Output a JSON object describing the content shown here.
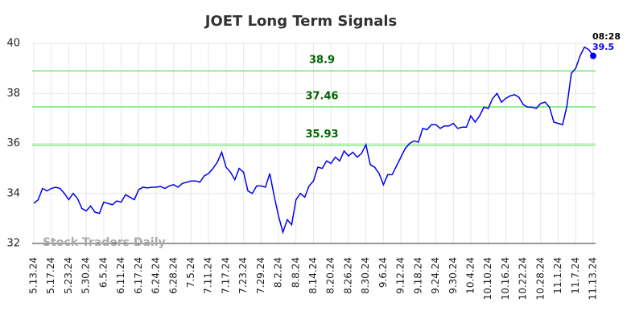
{
  "chart_data": {
    "type": "line",
    "title": "JOET Long Term Signals",
    "watermark": "Stock Traders Daily",
    "categories": [
      "5.13.24",
      null,
      null,
      null,
      "5.17.24",
      null,
      null,
      null,
      "5.23.24",
      null,
      null,
      null,
      "5.30.24",
      null,
      null,
      null,
      "6.5.24",
      null,
      null,
      null,
      "6.11.24",
      null,
      null,
      null,
      "6.17.24",
      null,
      null,
      null,
      "6.24.24",
      null,
      null,
      null,
      "6.28.24",
      null,
      null,
      null,
      "7.5.24",
      null,
      null,
      null,
      "7.11.24",
      null,
      null,
      null,
      "7.17.24",
      null,
      null,
      null,
      "7.23.24",
      null,
      null,
      null,
      "7.29.24",
      null,
      null,
      null,
      "8.2.24",
      null,
      null,
      null,
      "8.8.24",
      null,
      null,
      null,
      "8.14.24",
      null,
      null,
      null,
      "8.20.24",
      null,
      null,
      null,
      "8.26.24",
      null,
      null,
      null,
      "8.30.24",
      null,
      null,
      null,
      "9.6.24",
      null,
      null,
      null,
      "9.12.24",
      null,
      null,
      null,
      "9.18.24",
      null,
      null,
      null,
      "9.24.24",
      null,
      null,
      null,
      "9.30.24",
      null,
      null,
      null,
      "10.4.24",
      null,
      null,
      null,
      "10.10.24",
      null,
      null,
      null,
      "10.16.24",
      null,
      null,
      null,
      "10.22.24",
      null,
      null,
      null,
      "10.28.24",
      null,
      null,
      null,
      "11.1.24",
      null,
      null,
      null,
      "11.7.24",
      null,
      null,
      null,
      "11.13.24"
    ],
    "values": [
      33.6,
      33.75,
      34.2,
      34.1,
      34.2,
      34.25,
      34.2,
      34.0,
      33.75,
      34.0,
      33.8,
      33.4,
      33.3,
      33.5,
      33.25,
      33.2,
      33.65,
      33.6,
      33.55,
      33.7,
      33.65,
      33.95,
      33.85,
      33.75,
      34.15,
      34.25,
      34.22,
      34.25,
      34.25,
      34.28,
      34.2,
      34.3,
      34.35,
      34.25,
      34.4,
      34.45,
      34.5,
      34.5,
      34.45,
      34.7,
      34.8,
      35.0,
      35.25,
      35.65,
      35.05,
      34.85,
      34.55,
      35.0,
      34.85,
      34.1,
      34.0,
      34.3,
      34.3,
      34.25,
      34.8,
      33.9,
      33.1,
      32.45,
      32.95,
      32.75,
      33.75,
      34.0,
      33.85,
      34.3,
      34.5,
      35.05,
      35.0,
      35.3,
      35.2,
      35.45,
      35.3,
      35.7,
      35.5,
      35.65,
      35.45,
      35.6,
      35.95,
      35.15,
      35.05,
      34.8,
      34.35,
      34.75,
      34.75,
      35.1,
      35.45,
      35.8,
      36.0,
      36.1,
      36.05,
      36.6,
      36.55,
      36.75,
      36.75,
      36.6,
      36.7,
      36.7,
      36.8,
      36.6,
      36.65,
      36.65,
      37.1,
      36.85,
      37.1,
      37.45,
      37.4,
      37.8,
      38.0,
      37.65,
      37.8,
      37.9,
      37.95,
      37.85,
      37.55,
      37.45,
      37.45,
      37.4,
      37.6,
      37.65,
      37.45,
      36.85,
      36.8,
      36.75,
      37.5,
      38.8,
      39.0,
      39.5,
      39.85,
      39.75,
      39.5
    ],
    "color": "#0000ee",
    "hlines": [
      38.9,
      37.46,
      35.93
    ],
    "hline_color": "#90ee90",
    "hline_label_color": "#006400",
    "last_time": "08:28",
    "ylim": [
      32,
      40
    ],
    "yticks": [
      32,
      34,
      36,
      38,
      40
    ],
    "grid": true
  }
}
